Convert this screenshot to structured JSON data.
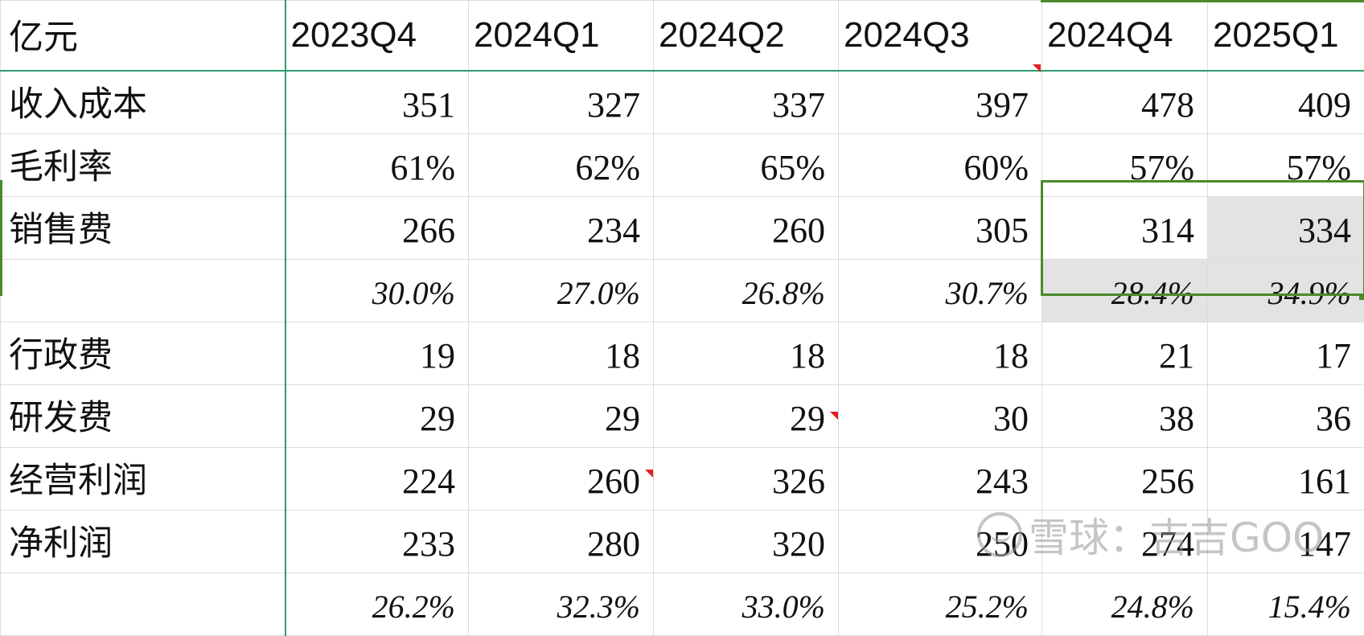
{
  "header": {
    "unit_label": "亿元",
    "quarters": [
      "2023Q4",
      "2024Q1",
      "2024Q2",
      "2024Q3",
      "2024Q4",
      "2025Q1"
    ]
  },
  "rows": {
    "revenue_cost": {
      "label": "收入成本",
      "values": [
        "351",
        "327",
        "337",
        "397",
        "478",
        "409"
      ]
    },
    "gross_margin": {
      "label": "毛利率",
      "values": [
        "61%",
        "62%",
        "65%",
        "60%",
        "57%",
        "57%"
      ]
    },
    "selling_expense": {
      "label": "销售费",
      "values": [
        "266",
        "234",
        "260",
        "305",
        "314",
        "334"
      ]
    },
    "selling_ratio": {
      "label": "",
      "values": [
        "30.0%",
        "27.0%",
        "26.8%",
        "30.7%",
        "28.4%",
        "34.9%"
      ]
    },
    "admin_expense": {
      "label": "行政费",
      "values": [
        "19",
        "18",
        "18",
        "18",
        "21",
        "17"
      ]
    },
    "rd_expense": {
      "label": "研发费",
      "values": [
        "29",
        "29",
        "29",
        "30",
        "38",
        "36"
      ]
    },
    "operating_profit": {
      "label": "经营利润",
      "values": [
        "224",
        "260",
        "326",
        "243",
        "256",
        "161"
      ]
    },
    "net_profit": {
      "label": "净利润",
      "values": [
        "233",
        "280",
        "320",
        "250",
        "274",
        "147"
      ]
    },
    "net_margin": {
      "label": "",
      "values": [
        "26.2%",
        "32.3%",
        "33.0%",
        "25.2%",
        "24.8%",
        "15.4%"
      ]
    }
  },
  "watermark": {
    "text": "雪球：吉吉GOO"
  },
  "colors": {
    "frozen_divider": "#2e9e6e",
    "selection": "#4a8a2a",
    "comment_marker": "#e02020",
    "selected_fill": "#e3e3e3"
  }
}
